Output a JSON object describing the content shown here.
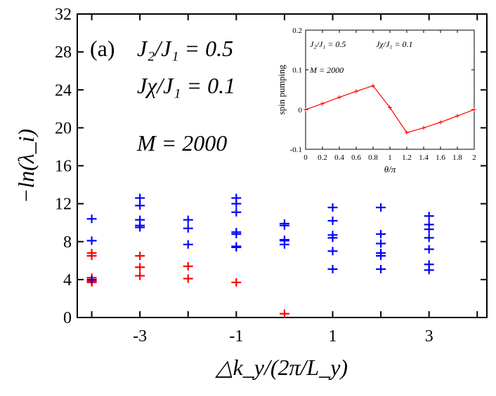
{
  "chart_data": [
    {
      "type": "scatter",
      "panel_label": "(a)",
      "annotations": [
        "J₂/J₁ = 0.5",
        "Jχ/J₁ = 0.1",
        "M = 2000"
      ],
      "xlabel": "△k_y/(2π/L_y)",
      "ylabel": "−ln(λ_i)",
      "xlim": [
        -4.3,
        4.2
      ],
      "ylim": [
        0,
        32
      ],
      "xticks": [
        -3,
        -1,
        1,
        3
      ],
      "xtick_labels": [
        "-3",
        "-1",
        "1",
        "3"
      ],
      "yticks": [
        0,
        4,
        8,
        12,
        16,
        20,
        24,
        28,
        32
      ],
      "ytick_labels": [
        "0",
        "4",
        "8",
        "12",
        "16",
        "20",
        "24",
        "28",
        "32"
      ],
      "marker": "+",
      "series": [
        {
          "name": "red",
          "color": "#ff0000",
          "x": [
            -4,
            -4,
            -4,
            -4,
            -4,
            -4,
            -3,
            -3,
            -3,
            -2,
            -2,
            -1,
            0
          ],
          "y": [
            6.8,
            6.5,
            4.2,
            3.9,
            3.8,
            3.7,
            6.5,
            5.3,
            4.4,
            5.4,
            4.1,
            3.7,
            0.4
          ]
        },
        {
          "name": "blue",
          "color": "#0000ff",
          "x": [
            -4,
            -4,
            -4,
            -3,
            -3,
            -3,
            -3,
            -3,
            -2,
            -2,
            -2,
            -1,
            -1,
            -1,
            -1,
            -1,
            -1,
            -1,
            0,
            0,
            0,
            0,
            0,
            1,
            1,
            1,
            1,
            1,
            1,
            2,
            2,
            2,
            2,
            2,
            2,
            3,
            3,
            3,
            3,
            3,
            3,
            3
          ],
          "y": [
            10.4,
            8.1,
            4.0,
            12.6,
            11.8,
            10.3,
            9.7,
            9.5,
            10.3,
            9.4,
            7.7,
            12.6,
            12.0,
            11.1,
            9.0,
            8.8,
            7.5,
            7.4,
            9.9,
            9.7,
            8.2,
            8.1,
            7.7,
            11.6,
            10.2,
            8.7,
            8.4,
            7.0,
            5.1,
            11.6,
            8.8,
            7.8,
            6.8,
            6.5,
            5.1,
            10.7,
            9.8,
            9.3,
            8.4,
            7.2,
            5.6,
            5.0
          ]
        }
      ]
    },
    {
      "type": "line",
      "title": "inset",
      "annotations": [
        "J₂/J₁ = 0.5",
        "Jχ/J₁ = 0.1",
        "M = 2000"
      ],
      "xlabel": "θ/π",
      "ylabel": "spin pumping",
      "xlim": [
        0,
        2
      ],
      "ylim": [
        -0.1,
        0.2
      ],
      "xticks": [
        0,
        0.2,
        0.4,
        0.6,
        0.8,
        1,
        1.2,
        1.4,
        1.6,
        1.8,
        2
      ],
      "xtick_labels": [
        "0",
        "0.2",
        "0.4",
        "0.6",
        "0.8",
        "1",
        "1.2",
        "1.4",
        "1.6",
        "1.8",
        "2"
      ],
      "yticks": [
        -0.1,
        0,
        0.1,
        0.2
      ],
      "ytick_labels": [
        "-0.1",
        "0",
        "0.1",
        "0.2"
      ],
      "series": [
        {
          "name": "spin pumping",
          "color": "#ff0000",
          "x": [
            0,
            0.2,
            0.4,
            0.6,
            0.8,
            1.0,
            1.2,
            1.4,
            1.6,
            1.8,
            2.0
          ],
          "y": [
            0.0,
            0.015,
            0.031,
            0.046,
            0.06,
            0.005,
            -0.058,
            -0.046,
            -0.032,
            -0.016,
            0.0
          ]
        }
      ]
    }
  ]
}
